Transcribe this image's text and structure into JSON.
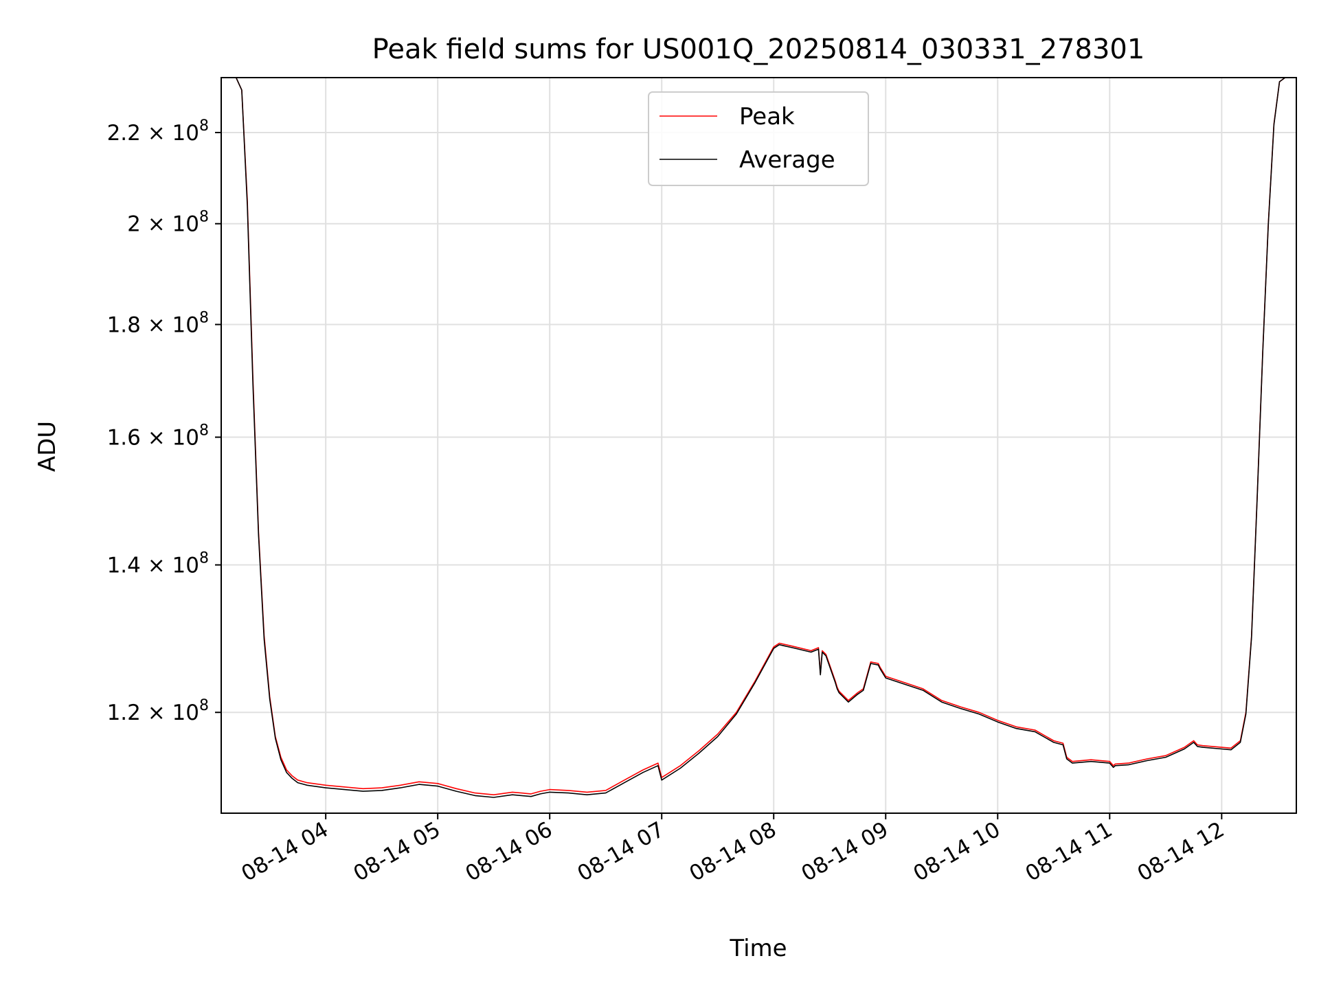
{
  "chart_data": {
    "type": "line",
    "title": "Peak field sums for US001Q_20250814_030331_278301",
    "xlabel": "Time",
    "ylabel": "ADU",
    "y_scale": "log",
    "ylim": [
      108000000,
      233000000
    ],
    "y_ticks": [
      {
        "value": 120000000,
        "mantissa": "1.2",
        "exponent": "8"
      },
      {
        "value": 140000000,
        "mantissa": "1.4",
        "exponent": "8"
      },
      {
        "value": 160000000,
        "mantissa": "1.6",
        "exponent": "8"
      },
      {
        "value": 180000000,
        "mantissa": "1.8",
        "exponent": "8"
      },
      {
        "value": 200000000,
        "mantissa": "2",
        "exponent": "8"
      },
      {
        "value": 220000000,
        "mantissa": "2.2",
        "exponent": "8"
      }
    ],
    "xlim": [
      "2025-08-14 03:04",
      "2025-08-14 12:40"
    ],
    "x_ticks": [
      {
        "time": "2025-08-14 04:00",
        "label": "08-14 04"
      },
      {
        "time": "2025-08-14 05:00",
        "label": "08-14 05"
      },
      {
        "time": "2025-08-14 06:00",
        "label": "08-14 06"
      },
      {
        "time": "2025-08-14 07:00",
        "label": "08-14 07"
      },
      {
        "time": "2025-08-14 08:00",
        "label": "08-14 08"
      },
      {
        "time": "2025-08-14 09:00",
        "label": "08-14 09"
      },
      {
        "time": "2025-08-14 10:00",
        "label": "08-14 10"
      },
      {
        "time": "2025-08-14 11:00",
        "label": "08-14 11"
      },
      {
        "time": "2025-08-14 12:00",
        "label": "08-14 12"
      }
    ],
    "grid": true,
    "legend_position": "top-center",
    "series": [
      {
        "name": "Peak",
        "color": "#ff0000",
        "x": [
          "2025-08-14 03:12",
          "2025-08-14 03:15",
          "2025-08-14 03:18",
          "2025-08-14 03:21",
          "2025-08-14 03:24",
          "2025-08-14 03:27",
          "2025-08-14 03:30",
          "2025-08-14 03:33",
          "2025-08-14 03:36",
          "2025-08-14 03:39",
          "2025-08-14 03:42",
          "2025-08-14 03:45",
          "2025-08-14 03:50",
          "2025-08-14 04:00",
          "2025-08-14 04:10",
          "2025-08-14 04:20",
          "2025-08-14 04:30",
          "2025-08-14 04:40",
          "2025-08-14 04:50",
          "2025-08-14 05:00",
          "2025-08-14 05:10",
          "2025-08-14 05:20",
          "2025-08-14 05:30",
          "2025-08-14 05:40",
          "2025-08-14 05:50",
          "2025-08-14 05:55",
          "2025-08-14 06:00",
          "2025-08-14 06:10",
          "2025-08-14 06:20",
          "2025-08-14 06:30",
          "2025-08-14 06:40",
          "2025-08-14 06:50",
          "2025-08-14 06:58",
          "2025-08-14 07:00",
          "2025-08-14 07:10",
          "2025-08-14 07:20",
          "2025-08-14 07:30",
          "2025-08-14 07:40",
          "2025-08-14 07:50",
          "2025-08-14 08:00",
          "2025-08-14 08:03",
          "2025-08-14 08:10",
          "2025-08-14 08:20",
          "2025-08-14 08:24",
          "2025-08-14 08:25",
          "2025-08-14 08:26",
          "2025-08-14 08:28",
          "2025-08-14 08:33",
          "2025-08-14 08:34",
          "2025-08-14 08:35",
          "2025-08-14 08:40",
          "2025-08-14 08:45",
          "2025-08-14 08:48",
          "2025-08-14 08:52",
          "2025-08-14 08:56",
          "2025-08-14 08:57",
          "2025-08-14 09:00",
          "2025-08-14 09:10",
          "2025-08-14 09:20",
          "2025-08-14 09:30",
          "2025-08-14 09:40",
          "2025-08-14 09:50",
          "2025-08-14 10:00",
          "2025-08-14 10:10",
          "2025-08-14 10:20",
          "2025-08-14 10:30",
          "2025-08-14 10:35",
          "2025-08-14 10:37",
          "2025-08-14 10:40",
          "2025-08-14 10:50",
          "2025-08-14 11:00",
          "2025-08-14 11:02",
          "2025-08-14 11:03",
          "2025-08-14 11:10",
          "2025-08-14 11:20",
          "2025-08-14 11:30",
          "2025-08-14 11:40",
          "2025-08-14 11:45",
          "2025-08-14 11:47",
          "2025-08-14 11:50",
          "2025-08-14 12:00",
          "2025-08-14 12:05",
          "2025-08-14 12:10",
          "2025-08-14 12:13",
          "2025-08-14 12:16",
          "2025-08-14 12:19",
          "2025-08-14 12:22",
          "2025-08-14 12:25",
          "2025-08-14 12:28",
          "2025-08-14 12:31",
          "2025-08-14 12:34"
        ],
        "y": [
          233000000,
          230000000,
          205000000,
          170000000,
          145000000,
          130000000,
          122000000,
          117000000,
          114500000,
          113000000,
          112300000,
          111800000,
          111500000,
          111200000,
          111000000,
          110800000,
          110900000,
          111200000,
          111600000,
          111400000,
          110800000,
          110300000,
          110100000,
          110400000,
          110200000,
          110500000,
          110700000,
          110600000,
          110400000,
          110600000,
          111800000,
          113000000,
          113800000,
          112100000,
          113500000,
          115300000,
          117300000,
          120000000,
          124000000,
          128500000,
          129000000,
          128600000,
          128000000,
          128400000,
          125000000,
          128000000,
          127500000,
          124000000,
          123200000,
          122700000,
          121500000,
          122500000,
          123000000,
          126500000,
          126300000,
          125800000,
          124600000,
          123800000,
          123000000,
          121500000,
          120700000,
          120000000,
          119000000,
          118200000,
          117800000,
          116500000,
          116200000,
          114500000,
          114000000,
          114200000,
          114000000,
          113500000,
          113700000,
          113800000,
          114300000,
          114700000,
          115700000,
          116500000,
          116000000,
          115900000,
          115700000,
          115600000,
          116500000,
          120000000,
          130000000,
          150000000,
          175000000,
          200000000,
          222000000,
          232000000,
          233000000
        ]
      },
      {
        "name": "Average",
        "color": "#000000",
        "x": [
          "2025-08-14 03:12",
          "2025-08-14 03:15",
          "2025-08-14 03:18",
          "2025-08-14 03:21",
          "2025-08-14 03:24",
          "2025-08-14 03:27",
          "2025-08-14 03:30",
          "2025-08-14 03:33",
          "2025-08-14 03:36",
          "2025-08-14 03:39",
          "2025-08-14 03:42",
          "2025-08-14 03:45",
          "2025-08-14 03:50",
          "2025-08-14 04:00",
          "2025-08-14 04:10",
          "2025-08-14 04:20",
          "2025-08-14 04:30",
          "2025-08-14 04:40",
          "2025-08-14 04:50",
          "2025-08-14 05:00",
          "2025-08-14 05:10",
          "2025-08-14 05:20",
          "2025-08-14 05:30",
          "2025-08-14 05:40",
          "2025-08-14 05:50",
          "2025-08-14 05:55",
          "2025-08-14 06:00",
          "2025-08-14 06:10",
          "2025-08-14 06:20",
          "2025-08-14 06:30",
          "2025-08-14 06:40",
          "2025-08-14 06:50",
          "2025-08-14 06:58",
          "2025-08-14 07:00",
          "2025-08-14 07:10",
          "2025-08-14 07:20",
          "2025-08-14 07:30",
          "2025-08-14 07:40",
          "2025-08-14 07:50",
          "2025-08-14 08:00",
          "2025-08-14 08:03",
          "2025-08-14 08:10",
          "2025-08-14 08:20",
          "2025-08-14 08:24",
          "2025-08-14 08:25",
          "2025-08-14 08:26",
          "2025-08-14 08:28",
          "2025-08-14 08:33",
          "2025-08-14 08:34",
          "2025-08-14 08:35",
          "2025-08-14 08:40",
          "2025-08-14 08:45",
          "2025-08-14 08:48",
          "2025-08-14 08:52",
          "2025-08-14 08:56",
          "2025-08-14 08:57",
          "2025-08-14 09:00",
          "2025-08-14 09:10",
          "2025-08-14 09:20",
          "2025-08-14 09:30",
          "2025-08-14 09:40",
          "2025-08-14 09:50",
          "2025-08-14 10:00",
          "2025-08-14 10:10",
          "2025-08-14 10:20",
          "2025-08-14 10:30",
          "2025-08-14 10:35",
          "2025-08-14 10:37",
          "2025-08-14 10:40",
          "2025-08-14 10:50",
          "2025-08-14 11:00",
          "2025-08-14 11:02",
          "2025-08-14 11:03",
          "2025-08-14 11:10",
          "2025-08-14 11:20",
          "2025-08-14 11:30",
          "2025-08-14 11:40",
          "2025-08-14 11:45",
          "2025-08-14 11:47",
          "2025-08-14 11:50",
          "2025-08-14 12:00",
          "2025-08-14 12:05",
          "2025-08-14 12:10",
          "2025-08-14 12:13",
          "2025-08-14 12:16",
          "2025-08-14 12:19",
          "2025-08-14 12:22",
          "2025-08-14 12:25",
          "2025-08-14 12:28",
          "2025-08-14 12:31",
          "2025-08-14 12:34"
        ],
        "y": [
          233000000,
          230000000,
          204000000,
          169000000,
          144500000,
          129500000,
          121700000,
          116800000,
          114200000,
          112700000,
          112000000,
          111500000,
          111200000,
          110900000,
          110700000,
          110500000,
          110600000,
          110900000,
          111300000,
          111100000,
          110500000,
          110000000,
          109800000,
          110100000,
          109900000,
          110200000,
          110400000,
          110300000,
          110100000,
          110300000,
          111500000,
          112700000,
          113500000,
          111800000,
          113200000,
          115000000,
          117000000,
          119800000,
          123800000,
          128300000,
          128800000,
          128400000,
          127800000,
          128200000,
          124800000,
          127800000,
          127300000,
          123800000,
          123000000,
          122500000,
          121300000,
          122300000,
          122800000,
          126300000,
          126100000,
          125600000,
          124400000,
          123600000,
          122800000,
          121300000,
          120500000,
          119800000,
          118800000,
          118000000,
          117600000,
          116300000,
          116000000,
          114300000,
          113800000,
          114000000,
          113800000,
          113300000,
          113500000,
          113600000,
          114100000,
          114500000,
          115500000,
          116300000,
          115800000,
          115700000,
          115500000,
          115400000,
          116300000,
          119800000,
          129800000,
          149800000,
          174800000,
          199800000,
          221800000,
          232000000,
          233000000
        ]
      }
    ]
  }
}
